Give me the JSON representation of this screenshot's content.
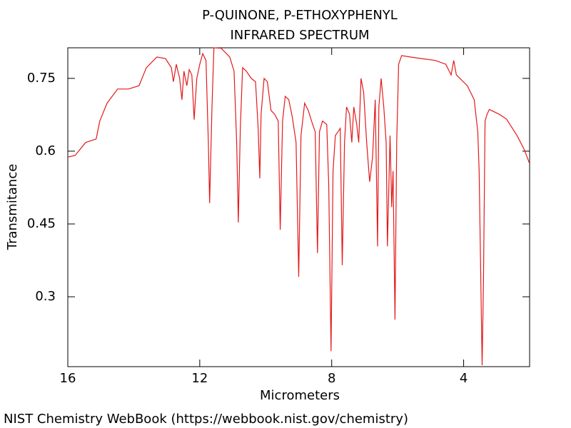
{
  "chart_data": {
    "type": "line",
    "title": "P-QUINONE, P-ETHOXYPHENYL",
    "subtitle": "INFRARED SPECTRUM",
    "x_label": "Micrometers",
    "y_label": "Transmitance",
    "footer": "NIST Chemistry WebBook (https://webbook.nist.gov/chemistry)",
    "xlim": [
      16,
      2
    ],
    "ylim": [
      0.156,
      0.813
    ],
    "xticks": [
      16,
      12,
      8,
      4
    ],
    "yticks": [
      0.75,
      0.6,
      0.45,
      0.3
    ],
    "grid": false,
    "series": [
      {
        "name": "spectrum",
        "color": "#e31a1c",
        "x": [
          16.0,
          15.78,
          15.46,
          15.14,
          15.03,
          14.81,
          14.49,
          14.16,
          13.84,
          13.62,
          13.3,
          13.04,
          12.86,
          12.8,
          12.71,
          12.61,
          12.54,
          12.48,
          12.39,
          12.32,
          12.24,
          12.17,
          12.09,
          12.0,
          11.91,
          11.81,
          11.74,
          11.7,
          11.63,
          11.57,
          11.35,
          11.09,
          10.96,
          10.88,
          10.83,
          10.77,
          10.7,
          10.59,
          10.44,
          10.31,
          10.23,
          10.18,
          10.14,
          10.05,
          9.95,
          9.84,
          9.73,
          9.62,
          9.56,
          9.49,
          9.41,
          9.3,
          9.19,
          9.08,
          9.0,
          8.93,
          8.82,
          8.71,
          8.61,
          8.5,
          8.43,
          8.37,
          8.28,
          8.15,
          8.09,
          8.02,
          7.96,
          7.89,
          7.81,
          7.74,
          7.68,
          7.61,
          7.55,
          7.46,
          7.39,
          7.33,
          7.24,
          7.18,
          7.11,
          7.03,
          6.94,
          6.85,
          6.76,
          6.68,
          6.61,
          6.57,
          6.5,
          6.42,
          6.35,
          6.31,
          6.27,
          6.23,
          6.18,
          6.14,
          6.08,
          6.03,
          5.97,
          5.88,
          5.62,
          5.3,
          4.86,
          4.54,
          4.38,
          4.3,
          4.22,
          3.89,
          3.68,
          3.57,
          3.53,
          3.48,
          3.44,
          3.4,
          3.35,
          3.29,
          3.22,
          2.92,
          2.7,
          2.38,
          2.16,
          2.01
        ],
        "values": [
          0.588,
          0.591,
          0.618,
          0.625,
          0.662,
          0.699,
          0.728,
          0.728,
          0.735,
          0.772,
          0.794,
          0.791,
          0.772,
          0.743,
          0.779,
          0.75,
          0.706,
          0.765,
          0.735,
          0.768,
          0.757,
          0.665,
          0.75,
          0.779,
          0.801,
          0.787,
          0.618,
          0.493,
          0.691,
          0.813,
          0.812,
          0.794,
          0.765,
          0.618,
          0.453,
          0.647,
          0.772,
          0.765,
          0.75,
          0.743,
          0.647,
          0.544,
          0.676,
          0.75,
          0.743,
          0.684,
          0.676,
          0.662,
          0.438,
          0.662,
          0.713,
          0.706,
          0.669,
          0.618,
          0.341,
          0.632,
          0.699,
          0.684,
          0.662,
          0.64,
          0.39,
          0.64,
          0.662,
          0.655,
          0.529,
          0.188,
          0.559,
          0.632,
          0.64,
          0.647,
          0.365,
          0.618,
          0.691,
          0.676,
          0.618,
          0.691,
          0.655,
          0.618,
          0.75,
          0.721,
          0.618,
          0.537,
          0.588,
          0.706,
          0.404,
          0.691,
          0.75,
          0.691,
          0.618,
          0.404,
          0.522,
          0.632,
          0.485,
          0.559,
          0.253,
          0.618,
          0.779,
          0.797,
          0.794,
          0.791,
          0.787,
          0.779,
          0.757,
          0.787,
          0.757,
          0.735,
          0.706,
          0.64,
          0.559,
          0.338,
          0.159,
          0.324,
          0.662,
          0.676,
          0.686,
          0.676,
          0.666,
          0.632,
          0.603,
          0.576
        ]
      }
    ]
  }
}
